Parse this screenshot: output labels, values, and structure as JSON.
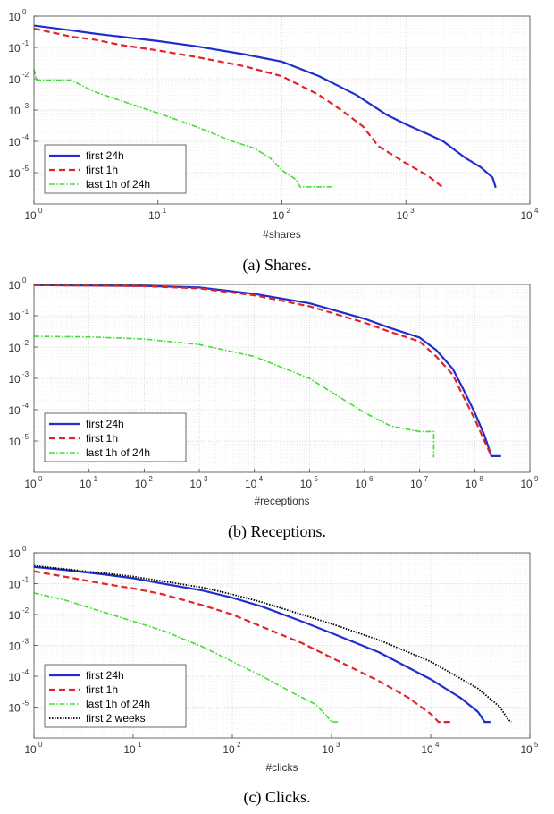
{
  "chart_data": [
    {
      "type": "line",
      "caption": "(a) Shares.",
      "xlabel": "#shares",
      "ylabel": "",
      "xscale": "log",
      "yscale": "log",
      "xlim": [
        1,
        10000
      ],
      "ylim_exp": [
        -6,
        0
      ],
      "x_ticks_exp": [
        0,
        1,
        2,
        3,
        4
      ],
      "y_ticks_exp": [
        0,
        -1,
        -2,
        -3,
        -4,
        -5
      ],
      "grid": true,
      "legend_position": "bottom-left",
      "series": [
        {
          "name": "first 24h",
          "color": "#1f2ecc",
          "dash": "solid",
          "width": 2.2,
          "points": [
            [
              1,
              0.5
            ],
            [
              2,
              0.35
            ],
            [
              3,
              0.28
            ],
            [
              5,
              0.22
            ],
            [
              10,
              0.16
            ],
            [
              20,
              0.11
            ],
            [
              50,
              0.06
            ],
            [
              100,
              0.035
            ],
            [
              200,
              0.012
            ],
            [
              400,
              0.003
            ],
            [
              700,
              0.0007
            ],
            [
              1000,
              0.00035
            ],
            [
              1500,
              0.00017
            ],
            [
              2000,
              0.0001
            ],
            [
              3000,
              3e-05
            ],
            [
              4000,
              1.5e-05
            ],
            [
              5000,
              7e-06
            ],
            [
              5300,
              3.3e-06
            ]
          ]
        },
        {
          "name": "first 1h",
          "color": "#e0242a",
          "dash": "7,4",
          "width": 2.2,
          "points": [
            [
              1,
              0.4
            ],
            [
              2,
              0.22
            ],
            [
              3,
              0.18
            ],
            [
              5,
              0.12
            ],
            [
              10,
              0.08
            ],
            [
              20,
              0.05
            ],
            [
              50,
              0.025
            ],
            [
              100,
              0.012
            ],
            [
              200,
              0.003
            ],
            [
              300,
              0.001
            ],
            [
              450,
              0.0003
            ],
            [
              600,
              7e-05
            ],
            [
              1000,
              2e-05
            ],
            [
              1500,
              8e-06
            ],
            [
              2000,
              3.3e-06
            ]
          ]
        },
        {
          "name": "last 1h of 24h",
          "color": "#44dd33",
          "dash": "6,2,1.5,2",
          "width": 1.6,
          "points": [
            [
              1,
              0.02
            ],
            [
              1.05,
              0.009
            ],
            [
              2,
              0.009
            ],
            [
              3,
              0.004
            ],
            [
              5,
              0.002
            ],
            [
              10,
              0.0008
            ],
            [
              20,
              0.0003
            ],
            [
              40,
              0.0001
            ],
            [
              60,
              6e-05
            ],
            [
              80,
              3e-05
            ],
            [
              100,
              1.2e-05
            ],
            [
              130,
              6e-06
            ],
            [
              140,
              3.5e-06
            ],
            [
              250,
              3.5e-06
            ]
          ]
        }
      ]
    },
    {
      "type": "line",
      "caption": "(b) Receptions.",
      "xlabel": "#receptions",
      "ylabel": "",
      "xscale": "log",
      "yscale": "log",
      "xlim": [
        1,
        1000000000
      ],
      "ylim_exp": [
        -6,
        0
      ],
      "x_ticks_exp": [
        0,
        1,
        2,
        3,
        4,
        5,
        6,
        7,
        8,
        9
      ],
      "y_ticks_exp": [
        0,
        -1,
        -2,
        -3,
        -4,
        -5
      ],
      "grid": true,
      "legend_position": "bottom-left",
      "series": [
        {
          "name": "first 24h",
          "color": "#1f2ecc",
          "dash": "solid",
          "width": 2.2,
          "points": [
            [
              1,
              0.95
            ],
            [
              100,
              0.9
            ],
            [
              1000,
              0.8
            ],
            [
              10000,
              0.5
            ],
            [
              100000,
              0.25
            ],
            [
              1000000,
              0.08
            ],
            [
              3000000,
              0.04
            ],
            [
              10000000,
              0.02
            ],
            [
              20000000,
              0.008
            ],
            [
              40000000,
              0.002
            ],
            [
              60000000,
              0.0005
            ],
            [
              100000000,
              8e-05
            ],
            [
              150000000,
              1.5e-05
            ],
            [
              200000000,
              3.3e-06
            ],
            [
              300000000,
              3.3e-06
            ]
          ]
        },
        {
          "name": "first 1h",
          "color": "#e0242a",
          "dash": "7,4",
          "width": 2.2,
          "points": [
            [
              1,
              0.95
            ],
            [
              100,
              0.88
            ],
            [
              1000,
              0.75
            ],
            [
              10000,
              0.45
            ],
            [
              100000,
              0.2
            ],
            [
              1000000,
              0.06
            ],
            [
              3000000,
              0.03
            ],
            [
              10000000,
              0.015
            ],
            [
              20000000,
              0.005
            ],
            [
              40000000,
              0.0013
            ],
            [
              60000000,
              0.0003
            ],
            [
              100000000,
              5e-05
            ],
            [
              150000000,
              1e-05
            ],
            [
              200000000,
              3.3e-06
            ]
          ]
        },
        {
          "name": "last 1h of 24h",
          "color": "#44dd33",
          "dash": "6,2,1.5,2",
          "width": 1.6,
          "points": [
            [
              1,
              0.022
            ],
            [
              10,
              0.021
            ],
            [
              100,
              0.018
            ],
            [
              1000,
              0.012
            ],
            [
              10000,
              0.005
            ],
            [
              100000,
              0.001
            ],
            [
              1000000,
              8e-05
            ],
            [
              3000000,
              3e-05
            ],
            [
              10000000,
              2e-05
            ],
            [
              18000000,
              2e-05
            ],
            [
              18000000,
              3e-06
            ]
          ]
        }
      ]
    },
    {
      "type": "line",
      "caption": "(c) Clicks.",
      "xlabel": "#clicks",
      "ylabel": "",
      "xscale": "log",
      "yscale": "log",
      "xlim": [
        1,
        100000
      ],
      "ylim_exp": [
        -6,
        0
      ],
      "x_ticks_exp": [
        0,
        1,
        2,
        3,
        4,
        5
      ],
      "y_ticks_exp": [
        0,
        -1,
        -2,
        -3,
        -4,
        -5
      ],
      "grid": true,
      "legend_position": "bottom-left",
      "series": [
        {
          "name": "first 24h",
          "color": "#1f2ecc",
          "dash": "solid",
          "width": 2.2,
          "points": [
            [
              1,
              0.35
            ],
            [
              2,
              0.28
            ],
            [
              5,
              0.2
            ],
            [
              10,
              0.15
            ],
            [
              20,
              0.1
            ],
            [
              50,
              0.06
            ],
            [
              100,
              0.035
            ],
            [
              200,
              0.018
            ],
            [
              500,
              0.006
            ],
            [
              1000,
              0.0025
            ],
            [
              3000,
              0.0006
            ],
            [
              10000,
              8e-05
            ],
            [
              20000,
              2e-05
            ],
            [
              30000,
              7e-06
            ],
            [
              35000,
              3.3e-06
            ],
            [
              40000,
              3.3e-06
            ]
          ]
        },
        {
          "name": "first 1h",
          "color": "#e0242a",
          "dash": "7,4",
          "width": 2.2,
          "points": [
            [
              1,
              0.25
            ],
            [
              2,
              0.17
            ],
            [
              5,
              0.1
            ],
            [
              10,
              0.07
            ],
            [
              20,
              0.045
            ],
            [
              50,
              0.02
            ],
            [
              100,
              0.01
            ],
            [
              200,
              0.004
            ],
            [
              500,
              0.0012
            ],
            [
              1000,
              0.0004
            ],
            [
              3000,
              7e-05
            ],
            [
              6000,
              2e-05
            ],
            [
              10000,
              6e-06
            ],
            [
              12000,
              3.3e-06
            ],
            [
              16000,
              3.3e-06
            ]
          ]
        },
        {
          "name": "last 1h of 24h",
          "color": "#44dd33",
          "dash": "6,2,1.5,2",
          "width": 1.6,
          "points": [
            [
              1,
              0.05
            ],
            [
              2,
              0.03
            ],
            [
              5,
              0.012
            ],
            [
              10,
              0.006
            ],
            [
              20,
              0.003
            ],
            [
              50,
              0.0009
            ],
            [
              100,
              0.0003
            ],
            [
              200,
              0.0001
            ],
            [
              400,
              3e-05
            ],
            [
              700,
              1.2e-05
            ],
            [
              900,
              5e-06
            ],
            [
              1000,
              3.3e-06
            ],
            [
              1200,
              3.3e-06
            ]
          ]
        },
        {
          "name": "first 2 weeks",
          "color": "#000000",
          "dash": "1.5,1.5",
          "width": 1.8,
          "points": [
            [
              1,
              0.38
            ],
            [
              2,
              0.3
            ],
            [
              5,
              0.22
            ],
            [
              10,
              0.17
            ],
            [
              20,
              0.12
            ],
            [
              50,
              0.075
            ],
            [
              100,
              0.045
            ],
            [
              200,
              0.025
            ],
            [
              500,
              0.01
            ],
            [
              1000,
              0.005
            ],
            [
              3000,
              0.0015
            ],
            [
              10000,
              0.0003
            ],
            [
              30000,
              4e-05
            ],
            [
              50000,
              1e-05
            ],
            [
              60000,
              4e-06
            ],
            [
              65000,
              3.3e-06
            ]
          ]
        }
      ]
    }
  ]
}
